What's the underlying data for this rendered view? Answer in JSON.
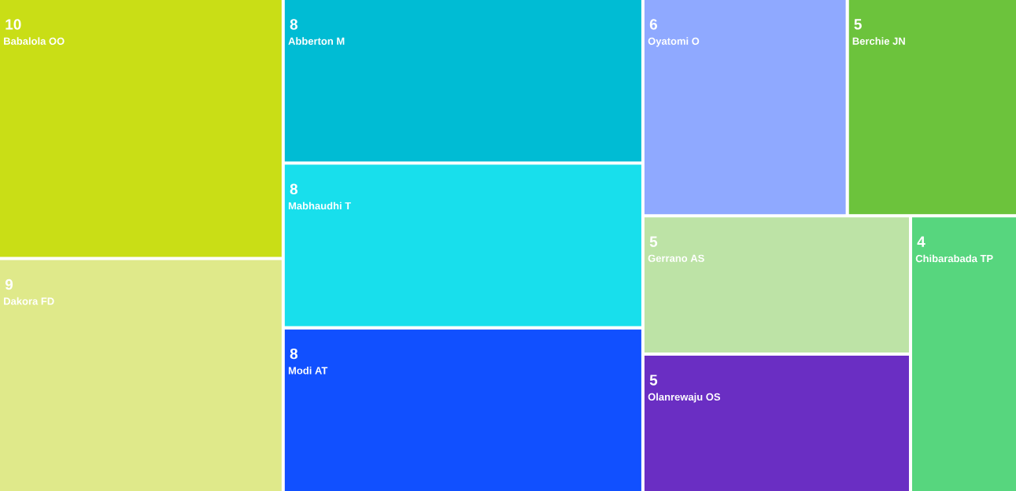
{
  "chart_data": {
    "type": "other",
    "data_labels": true,
    "categories": [
      "Babalola OO",
      "Dakora FD",
      "Abberton M",
      "Mabhaudhi T",
      "Modi AT",
      "Oyatomi O",
      "Berchie JN",
      "Gerrano AS",
      "Olanrewaju OS",
      "Chibarabada TP"
    ],
    "values": [
      10,
      9,
      8,
      8,
      8,
      6,
      5,
      5,
      5,
      4
    ],
    "colors": [
      "#c9de16",
      "#dfe98a",
      "#00bcd4",
      "#18dfec",
      "#1150ff",
      "#8fa9ff",
      "#6cc33c",
      "#bde3a6",
      "#6a2ec3",
      "#57d67e"
    ]
  }
}
